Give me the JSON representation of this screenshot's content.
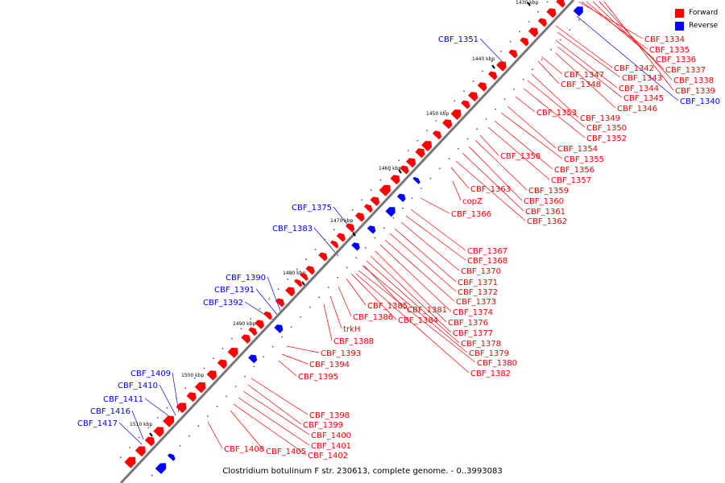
{
  "legend": {
    "forward_label": "Forward",
    "reverse_label": "Reverse",
    "forward_color": "#ff0000",
    "reverse_color": "#0000ff"
  },
  "caption": "Clostridium botulinum F str. 230613, complete genome. - 0..3993083",
  "ticks": [
    "1430 kbp",
    "1440 kbp",
    "1450 kbp",
    "1460 kbp",
    "1470 kbp",
    "1480 kbp",
    "1490 kbp",
    "1500 kbp",
    "1510 kbp"
  ],
  "genes": [
    {
      "name": "CBF_1334",
      "strand": "forward"
    },
    {
      "name": "CBF_1335",
      "strand": "forward"
    },
    {
      "name": "CBF_1336",
      "strand": "forward"
    },
    {
      "name": "CBF_1337",
      "strand": "forward"
    },
    {
      "name": "CBF_1338",
      "strand": "forward"
    },
    {
      "name": "CBF_1339",
      "strand": "forward"
    },
    {
      "name": "CBF_1340",
      "strand": "reverse"
    },
    {
      "name": "CBF_1342",
      "strand": "forward"
    },
    {
      "name": "CBF_1343",
      "strand": "forward"
    },
    {
      "name": "CBF_1344",
      "strand": "forward"
    },
    {
      "name": "CBF_1345",
      "strand": "forward"
    },
    {
      "name": "CBF_1346",
      "strand": "forward"
    },
    {
      "name": "CBF_1347",
      "strand": "forward"
    },
    {
      "name": "CBF_1348",
      "strand": "forward"
    },
    {
      "name": "CBF_1349",
      "strand": "forward"
    },
    {
      "name": "CBF_1350",
      "strand": "forward"
    },
    {
      "name": "CBF_1351",
      "strand": "reverse"
    },
    {
      "name": "CBF_1352",
      "strand": "forward"
    },
    {
      "name": "CBF_1353",
      "strand": "forward"
    },
    {
      "name": "CBF_1354",
      "strand": "forward"
    },
    {
      "name": "CBF_1355",
      "strand": "forward"
    },
    {
      "name": "CBF_1356",
      "strand": "forward"
    },
    {
      "name": "CBF_1357",
      "strand": "forward"
    },
    {
      "name": "CBF_1358",
      "strand": "forward"
    },
    {
      "name": "CBF_1359",
      "strand": "forward"
    },
    {
      "name": "CBF_1360",
      "strand": "forward"
    },
    {
      "name": "CBF_1361",
      "strand": "forward"
    },
    {
      "name": "CBF_1362",
      "strand": "forward"
    },
    {
      "name": "CBF_1363",
      "strand": "forward"
    },
    {
      "name": "copZ",
      "strand": "forward"
    },
    {
      "name": "CBF_1366",
      "strand": "forward"
    },
    {
      "name": "CBF_1367",
      "strand": "forward"
    },
    {
      "name": "CBF_1368",
      "strand": "forward"
    },
    {
      "name": "CBF_1370",
      "strand": "forward"
    },
    {
      "name": "CBF_1371",
      "strand": "forward"
    },
    {
      "name": "CBF_1372",
      "strand": "forward"
    },
    {
      "name": "CBF_1373",
      "strand": "forward"
    },
    {
      "name": "CBF_1374",
      "strand": "forward"
    },
    {
      "name": "CBF_1375",
      "strand": "reverse"
    },
    {
      "name": "CBF_1376",
      "strand": "forward"
    },
    {
      "name": "CBF_1377",
      "strand": "forward"
    },
    {
      "name": "CBF_1378",
      "strand": "forward"
    },
    {
      "name": "CBF_1379",
      "strand": "forward"
    },
    {
      "name": "CBF_1380",
      "strand": "forward"
    },
    {
      "name": "CBF_1381",
      "strand": "forward"
    },
    {
      "name": "CBF_1382",
      "strand": "forward"
    },
    {
      "name": "CBF_1383",
      "strand": "reverse"
    },
    {
      "name": "CBF_1384",
      "strand": "forward"
    },
    {
      "name": "CBF_1385",
      "strand": "forward"
    },
    {
      "name": "CBF_1386",
      "strand": "forward"
    },
    {
      "name": "trkH",
      "strand": "forward"
    },
    {
      "name": "CBF_1388",
      "strand": "forward"
    },
    {
      "name": "CBF_1390",
      "strand": "reverse"
    },
    {
      "name": "CBF_1391",
      "strand": "reverse"
    },
    {
      "name": "CBF_1392",
      "strand": "reverse"
    },
    {
      "name": "CBF_1393",
      "strand": "forward"
    },
    {
      "name": "CBF_1394",
      "strand": "forward"
    },
    {
      "name": "CBF_1395",
      "strand": "forward"
    },
    {
      "name": "CBF_1398",
      "strand": "forward"
    },
    {
      "name": "CBF_1399",
      "strand": "forward"
    },
    {
      "name": "CBF_1400",
      "strand": "forward"
    },
    {
      "name": "CBF_1401",
      "strand": "forward"
    },
    {
      "name": "CBF_1402",
      "strand": "forward"
    },
    {
      "name": "CBF_1405",
      "strand": "forward"
    },
    {
      "name": "CBF_1408",
      "strand": "forward"
    },
    {
      "name": "CBF_1409",
      "strand": "reverse"
    },
    {
      "name": "CBF_1410",
      "strand": "reverse"
    },
    {
      "name": "CBF_1411",
      "strand": "reverse"
    },
    {
      "name": "CBF_1416",
      "strand": "reverse"
    },
    {
      "name": "CBF_1417",
      "strand": "reverse"
    }
  ]
}
